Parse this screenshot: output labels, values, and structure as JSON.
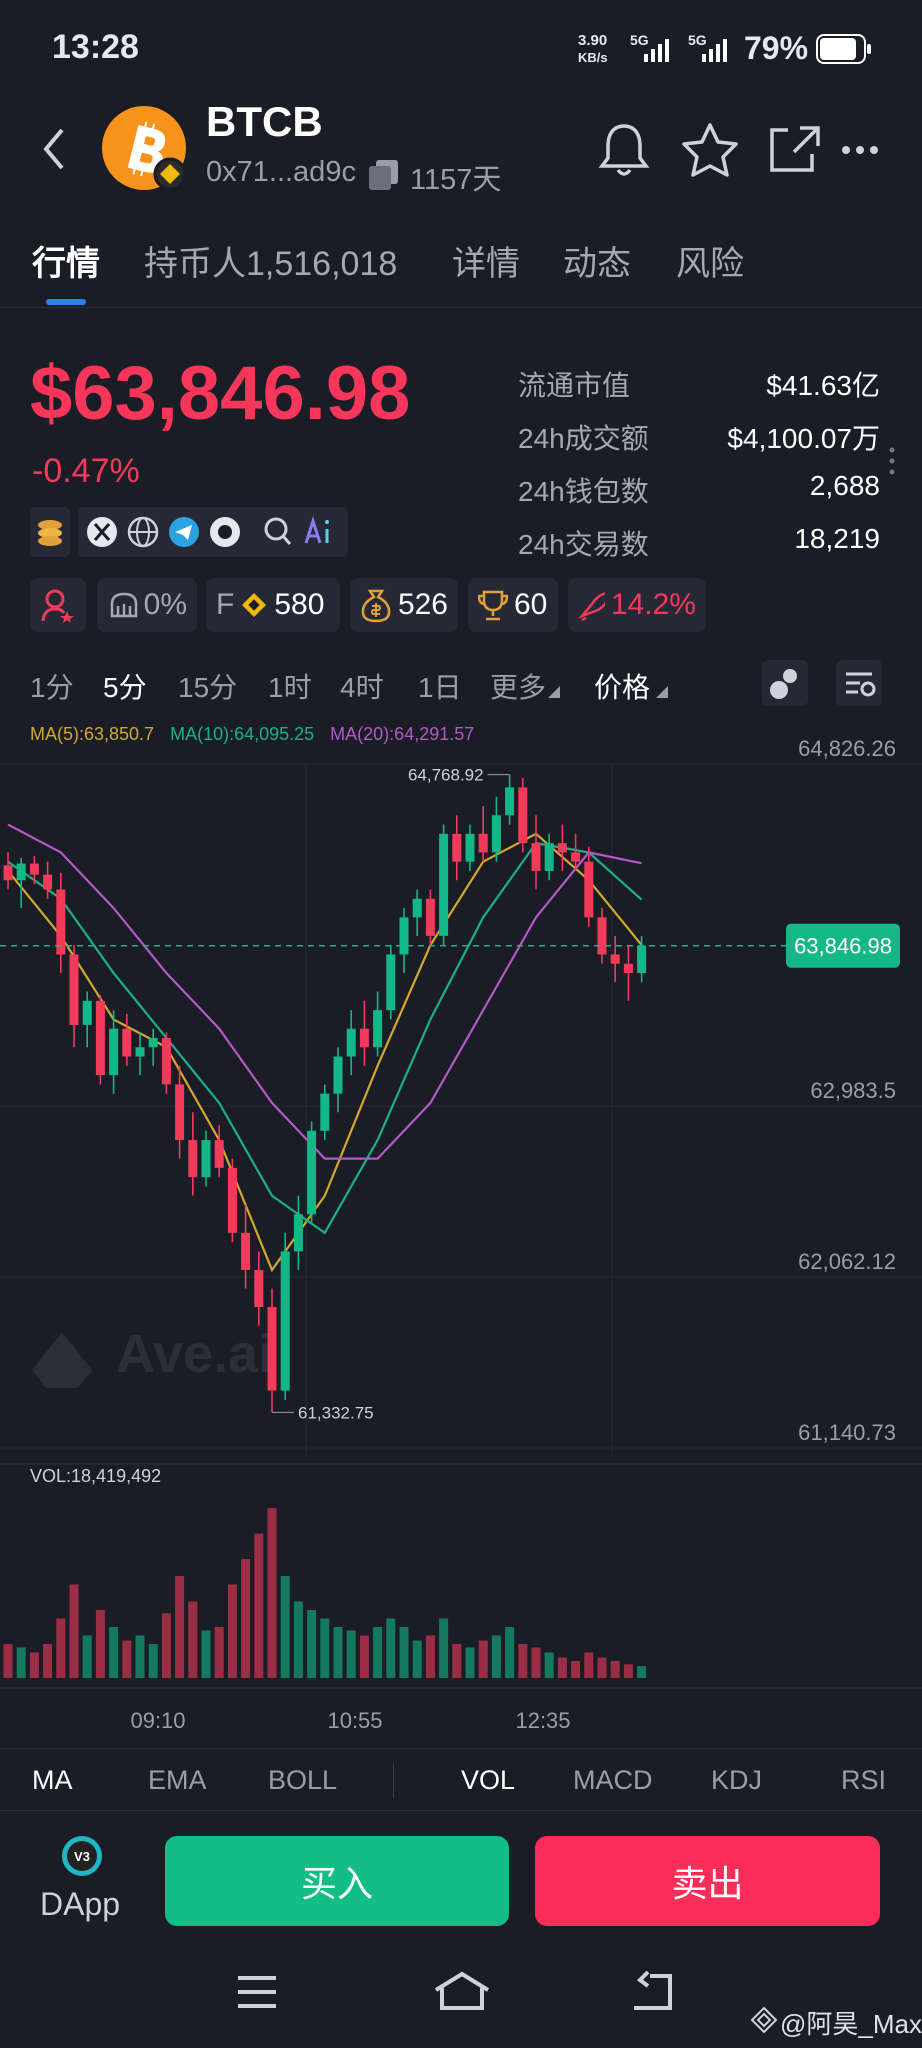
{
  "status_bar": {
    "time": "13:28",
    "speed": "3.90",
    "speed_unit": "KB/s",
    "network_1": "5G",
    "network_2": "5G",
    "battery": "79%"
  },
  "header": {
    "symbol": "BTCB",
    "address": "0x71...ad9c",
    "age": "1157天"
  },
  "tabs": [
    "行情",
    "持币人1,516,018",
    "详情",
    "动态",
    "风险"
  ],
  "price": {
    "price": "$63,846.98",
    "change": "-0.47%"
  },
  "stats": [
    {
      "label": "流通市值",
      "value": "$41.63亿"
    },
    {
      "label": "24h成交额",
      "value": "$4,100.07万"
    },
    {
      "label": "24h钱包数",
      "value": "2,688"
    },
    {
      "label": "24h交易数",
      "value": "18,219"
    }
  ],
  "badges": [
    "0%",
    "F",
    "580",
    "526",
    "60",
    "14.2%"
  ],
  "timeframes": [
    "1分",
    "5分",
    "15分",
    "1时",
    "4时",
    "1日",
    "更多",
    "价格"
  ],
  "chart_data": {
    "type": "candlestick",
    "watermark": "Ave.ai",
    "up_color": "#13b886",
    "down_color": "#f23a5a",
    "ylim": [
      61140.73,
      64826.26
    ],
    "yticks": [
      {
        "value": 64826.26,
        "label": "64,826.26"
      },
      {
        "value": 62983.5,
        "label": "62,983.5"
      },
      {
        "value": 62062.12,
        "label": "62,062.12"
      },
      {
        "value": 61140.73,
        "label": "61,140.73"
      }
    ],
    "current_price": {
      "value": 63846.98,
      "label": "63,846.98"
    },
    "max_marker": {
      "value": 64768.92,
      "label": "64,768.92"
    },
    "min_marker": {
      "value": 61332.75,
      "label": "61,332.75"
    },
    "ohlc": [
      [
        64280,
        64350,
        64150,
        64200
      ],
      [
        64200,
        64320,
        64050,
        64290
      ],
      [
        64290,
        64330,
        64180,
        64230
      ],
      [
        64230,
        64300,
        64100,
        64150
      ],
      [
        64150,
        64240,
        63700,
        63800
      ],
      [
        63800,
        63850,
        63300,
        63420
      ],
      [
        63420,
        63600,
        63300,
        63550
      ],
      [
        63550,
        63580,
        63100,
        63150
      ],
      [
        63150,
        63500,
        63050,
        63400
      ],
      [
        63400,
        63480,
        63200,
        63250
      ],
      [
        63250,
        63380,
        63150,
        63300
      ],
      [
        63300,
        63400,
        63200,
        63350
      ],
      [
        63350,
        63380,
        63050,
        63100
      ],
      [
        63100,
        63200,
        62700,
        62800
      ],
      [
        62800,
        62950,
        62500,
        62600
      ],
      [
        62600,
        62850,
        62550,
        62800
      ],
      [
        62800,
        62880,
        62600,
        62650
      ],
      [
        62650,
        62700,
        62250,
        62300
      ],
      [
        62300,
        62450,
        62000,
        62100
      ],
      [
        62100,
        62200,
        61800,
        61900
      ],
      [
        61900,
        62000,
        61332.75,
        61450
      ],
      [
        61450,
        62300,
        61400,
        62200
      ],
      [
        62200,
        62500,
        62100,
        62400
      ],
      [
        62400,
        62900,
        62350,
        62850
      ],
      [
        62850,
        63100,
        62800,
        63050
      ],
      [
        63050,
        63300,
        62950,
        63250
      ],
      [
        63250,
        63500,
        63150,
        63400
      ],
      [
        63400,
        63550,
        63200,
        63300
      ],
      [
        63300,
        63600,
        63250,
        63500
      ],
      [
        63500,
        63850,
        63450,
        63800
      ],
      [
        63800,
        64050,
        63700,
        64000
      ],
      [
        64000,
        64150,
        63900,
        64100
      ],
      [
        64100,
        64150,
        63850,
        63900
      ],
      [
        63900,
        64500,
        63850,
        64450
      ],
      [
        64450,
        64550,
        64200,
        64300
      ],
      [
        64300,
        64500,
        64250,
        64450
      ],
      [
        64450,
        64600,
        64300,
        64350
      ],
      [
        64350,
        64650,
        64300,
        64550
      ],
      [
        64550,
        64768.92,
        64500,
        64700
      ],
      [
        64700,
        64750,
        64350,
        64400
      ],
      [
        64400,
        64550,
        64150,
        64250
      ],
      [
        64250,
        64450,
        64200,
        64400
      ],
      [
        64400,
        64500,
        64250,
        64350
      ],
      [
        64350,
        64450,
        64250,
        64300
      ],
      [
        64300,
        64380,
        63950,
        64000
      ],
      [
        64000,
        64050,
        63750,
        63800
      ],
      [
        63800,
        63900,
        63650,
        63750
      ],
      [
        63750,
        63850,
        63550,
        63700
      ],
      [
        63700,
        63900,
        63650,
        63846.98
      ]
    ],
    "series": [
      {
        "name": "MA(5):63,850.7",
        "color": "#d4a82c",
        "x": [
          0,
          4,
          8,
          12,
          16,
          20,
          24,
          28,
          32,
          36,
          40,
          44,
          48
        ],
        "values": [
          64250,
          63900,
          63450,
          63300,
          62800,
          62100,
          62500,
          63200,
          63850,
          64300,
          64450,
          64200,
          63850.7
        ]
      },
      {
        "name": "MA(10):64,095.25",
        "color": "#1bb08a",
        "x": [
          0,
          4,
          8,
          12,
          16,
          20,
          24,
          28,
          32,
          36,
          40,
          44,
          48
        ],
        "values": [
          64300,
          64100,
          63700,
          63350,
          63000,
          62500,
          62300,
          62800,
          63450,
          64000,
          64400,
          64350,
          64095.25
        ]
      },
      {
        "name": "MA(20):64,291.57",
        "color": "#b558c8",
        "x": [
          0,
          4,
          8,
          12,
          16,
          20,
          24,
          28,
          32,
          36,
          40,
          44,
          48
        ],
        "values": [
          64500,
          64350,
          64050,
          63700,
          63400,
          63000,
          62700,
          62700,
          63000,
          63500,
          64000,
          64350,
          64291.57
        ]
      }
    ],
    "volume": {
      "label": "VOL:18,419,492",
      "ylim": [
        0,
        100
      ],
      "values": [
        20,
        18,
        15,
        20,
        35,
        55,
        25,
        40,
        30,
        22,
        25,
        20,
        38,
        60,
        45,
        28,
        30,
        55,
        70,
        85,
        100,
        60,
        45,
        40,
        35,
        30,
        28,
        25,
        30,
        35,
        30,
        22,
        25,
        35,
        20,
        18,
        22,
        25,
        30,
        20,
        18,
        15,
        12,
        10,
        15,
        12,
        10,
        8,
        7
      ]
    },
    "x_labels": [
      "09:10",
      "10:55",
      "12:35"
    ]
  },
  "indicators": [
    "MA",
    "EMA",
    "BOLL",
    "VOL",
    "MACD",
    "KDJ",
    "RSI"
  ],
  "actions": {
    "dapp_badge": "V3",
    "dapp": "DApp",
    "buy": "买入",
    "sell": "卖出"
  },
  "watermark": "@阿昊_Max"
}
